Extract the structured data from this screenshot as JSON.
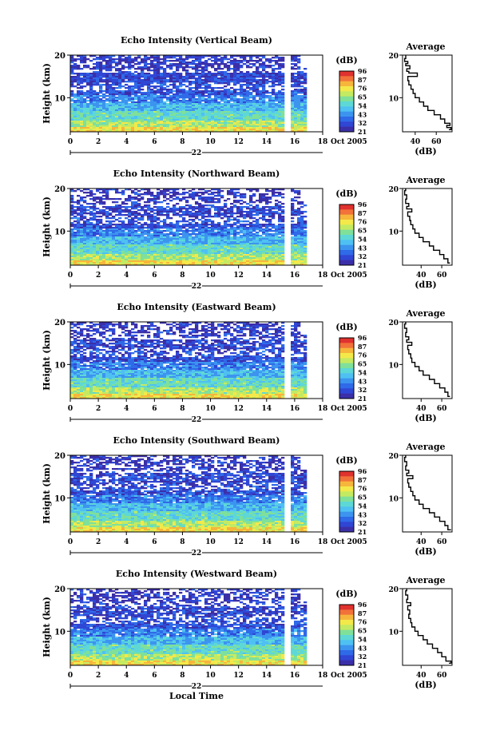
{
  "chart_data": [
    {
      "type": "heatmap",
      "title": "Echo Intensity (Vertical Beam)",
      "ylabel": "Height (km)",
      "ylim": [
        2,
        20
      ],
      "yticks": [
        10,
        20
      ],
      "xlim": [
        0,
        18
      ],
      "xticks": [
        0,
        2,
        4,
        6,
        8,
        10,
        12,
        14,
        16,
        18
      ],
      "date_label": "22",
      "month_label": "Oct 2005",
      "gap_hours": [
        [
          15.3,
          15.7
        ],
        [
          16.3,
          18
        ]
      ],
      "colorbar": {
        "unit": "(dB)",
        "ticks": [
          96,
          87,
          76,
          65,
          54,
          43,
          32,
          21
        ]
      },
      "average": {
        "title": "Average",
        "xlabel": "(dB)",
        "xticks": [
          40,
          60
        ],
        "xlim": [
          28,
          75
        ],
        "ylim": [
          2,
          20
        ],
        "yticks": [
          10,
          20
        ],
        "profile": [
          [
            72,
            2.5
          ],
          [
            74,
            3
          ],
          [
            70,
            3.5
          ],
          [
            73,
            4
          ],
          [
            68,
            5
          ],
          [
            64,
            6
          ],
          [
            58,
            7
          ],
          [
            52,
            8
          ],
          [
            48,
            9
          ],
          [
            44,
            10
          ],
          [
            40,
            11
          ],
          [
            38,
            12
          ],
          [
            36,
            13
          ],
          [
            34,
            14
          ],
          [
            33,
            15
          ],
          [
            42,
            15.8
          ],
          [
            34,
            16.2
          ],
          [
            32,
            16.8
          ],
          [
            35,
            17.5
          ],
          [
            31,
            18
          ],
          [
            33,
            18.5
          ],
          [
            30,
            19.2
          ],
          [
            31,
            20
          ]
        ]
      }
    },
    {
      "type": "heatmap",
      "title": "Echo Intensity (Northward Beam)",
      "ylabel": "Height (km)",
      "ylim": [
        2,
        20
      ],
      "yticks": [
        10,
        20
      ],
      "xlim": [
        0,
        18
      ],
      "xticks": [
        0,
        2,
        4,
        6,
        8,
        10,
        12,
        14,
        16,
        18
      ],
      "date_label": "22",
      "month_label": "Oct 2005",
      "gap_hours": [
        [
          15.3,
          15.7
        ],
        [
          16.3,
          18
        ]
      ],
      "colorbar": {
        "unit": "(dB)",
        "ticks": [
          96,
          87,
          76,
          65,
          54,
          43,
          32,
          21
        ]
      },
      "average": {
        "title": "Average",
        "xlabel": "(dB)",
        "xticks": [
          40,
          60
        ],
        "xlim": [
          22,
          70
        ],
        "ylim": [
          2,
          20
        ],
        "yticks": [
          10,
          20
        ],
        "profile": [
          [
            68,
            2.5
          ],
          [
            66,
            3.5
          ],
          [
            62,
            4.5
          ],
          [
            58,
            5.5
          ],
          [
            52,
            6.5
          ],
          [
            48,
            7.5
          ],
          [
            42,
            8.5
          ],
          [
            38,
            9.5
          ],
          [
            34,
            10.5
          ],
          [
            32,
            11.5
          ],
          [
            30,
            12.5
          ],
          [
            29,
            13.5
          ],
          [
            27,
            14.5
          ],
          [
            31,
            15.2
          ],
          [
            26,
            15.8
          ],
          [
            28,
            16.5
          ],
          [
            25,
            17.5
          ],
          [
            26,
            18.5
          ],
          [
            24,
            19.5
          ],
          [
            25,
            20
          ]
        ]
      }
    },
    {
      "type": "heatmap",
      "title": "Echo Intensity (Eastward Beam)",
      "ylabel": "Height (km)",
      "ylim": [
        2,
        20
      ],
      "yticks": [
        10,
        20
      ],
      "xlim": [
        0,
        18
      ],
      "xticks": [
        0,
        2,
        4,
        6,
        8,
        10,
        12,
        14,
        16,
        18
      ],
      "date_label": "22",
      "month_label": "Oct 2005",
      "gap_hours": [
        [
          15.3,
          15.7
        ],
        [
          16.3,
          18
        ]
      ],
      "colorbar": {
        "unit": "(dB)",
        "ticks": [
          96,
          87,
          76,
          65,
          54,
          43,
          32,
          21
        ]
      },
      "average": {
        "title": "Average",
        "xlabel": "(dB)",
        "xticks": [
          40,
          60
        ],
        "xlim": [
          22,
          70
        ],
        "ylim": [
          2,
          20
        ],
        "yticks": [
          10,
          20
        ],
        "profile": [
          [
            68,
            2.5
          ],
          [
            66,
            3.5
          ],
          [
            63,
            4.5
          ],
          [
            58,
            5.5
          ],
          [
            53,
            6.5
          ],
          [
            48,
            7.5
          ],
          [
            42,
            8.5
          ],
          [
            38,
            9.5
          ],
          [
            34,
            10.5
          ],
          [
            31,
            11.5
          ],
          [
            30,
            12.5
          ],
          [
            28,
            13.5
          ],
          [
            27,
            14.5
          ],
          [
            31,
            15.2
          ],
          [
            26,
            15.8
          ],
          [
            28,
            16.5
          ],
          [
            25,
            17.5
          ],
          [
            26,
            18.5
          ],
          [
            24,
            19.5
          ],
          [
            25,
            20
          ]
        ]
      }
    },
    {
      "type": "heatmap",
      "title": "Echo Intensity (Southward Beam)",
      "ylabel": "Height (km)",
      "ylim": [
        2,
        20
      ],
      "yticks": [
        10,
        20
      ],
      "xlim": [
        0,
        18
      ],
      "xticks": [
        0,
        2,
        4,
        6,
        8,
        10,
        12,
        14,
        16,
        18
      ],
      "date_label": "22",
      "month_label": "Oct 2005",
      "gap_hours": [
        [
          15.3,
          15.7
        ],
        [
          16.3,
          18
        ]
      ],
      "colorbar": {
        "unit": "(dB)",
        "ticks": [
          96,
          87,
          76,
          65,
          54,
          43,
          32,
          21
        ]
      },
      "average": {
        "title": "Average",
        "xlabel": "(dB)",
        "xticks": [
          40,
          60
        ],
        "xlim": [
          22,
          70
        ],
        "ylim": [
          2,
          20
        ],
        "yticks": [
          10,
          20
        ],
        "profile": [
          [
            69,
            2.5
          ],
          [
            66,
            3.5
          ],
          [
            63,
            4.5
          ],
          [
            58,
            5.5
          ],
          [
            53,
            6.5
          ],
          [
            48,
            7.5
          ],
          [
            42,
            8.5
          ],
          [
            38,
            9.5
          ],
          [
            34,
            10.5
          ],
          [
            32,
            11.5
          ],
          [
            30,
            12.5
          ],
          [
            28,
            13.5
          ],
          [
            27,
            14.5
          ],
          [
            32,
            15.2
          ],
          [
            26,
            15.8
          ],
          [
            28,
            16.5
          ],
          [
            25,
            17.5
          ],
          [
            26,
            18.5
          ],
          [
            24,
            19.5
          ],
          [
            25,
            20
          ]
        ]
      }
    },
    {
      "type": "heatmap",
      "title": "Echo Intensity (Westward Beam)",
      "ylabel": "Height (km)",
      "xlabel": "Local Time",
      "ylim": [
        2,
        20
      ],
      "yticks": [
        10,
        20
      ],
      "xlim": [
        0,
        18
      ],
      "xticks": [
        0,
        2,
        4,
        6,
        8,
        10,
        12,
        14,
        16,
        18
      ],
      "date_label": "22",
      "month_label": "Oct 2005",
      "gap_hours": [
        [
          15.3,
          15.7
        ],
        [
          16.3,
          18
        ]
      ],
      "colorbar": {
        "unit": "(dB)",
        "ticks": [
          96,
          87,
          76,
          65,
          54,
          43,
          32,
          21
        ]
      },
      "average": {
        "title": "Average",
        "xlabel": "(dB)",
        "xticks": [
          40,
          60
        ],
        "xlim": [
          22,
          70
        ],
        "ylim": [
          2,
          20
        ],
        "yticks": [
          10,
          20
        ],
        "profile": [
          [
            67,
            2.5
          ],
          [
            69,
            3
          ],
          [
            64,
            4
          ],
          [
            60,
            5
          ],
          [
            56,
            6
          ],
          [
            51,
            7
          ],
          [
            46,
            8
          ],
          [
            42,
            9
          ],
          [
            37,
            10
          ],
          [
            34,
            11
          ],
          [
            31,
            12
          ],
          [
            30,
            13
          ],
          [
            28,
            14
          ],
          [
            29,
            15
          ],
          [
            27,
            16
          ],
          [
            30,
            16.7
          ],
          [
            26,
            17.5
          ],
          [
            27,
            18.5
          ],
          [
            25,
            19.5
          ],
          [
            26,
            20
          ]
        ]
      }
    }
  ]
}
